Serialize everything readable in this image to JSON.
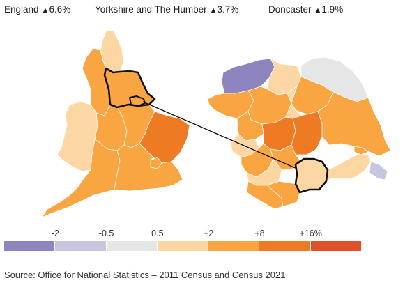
{
  "header": {
    "stats": [
      {
        "name": "England",
        "arrow": "▲",
        "change": "6.6%"
      },
      {
        "name": "Yorkshire and The Humber",
        "arrow": "▲",
        "change": "3.7%"
      },
      {
        "name": "Doncaster",
        "arrow": "▲",
        "change": "1.9%"
      }
    ]
  },
  "legend": {
    "ticks": [
      "-2",
      "-0.5",
      "0.5",
      "+2",
      "+8",
      "+16%"
    ],
    "colors": [
      "#8e84c0",
      "#c9c5e0",
      "#e6e6e6",
      "#fdd7a3",
      "#f9a541",
      "#ef7a24",
      "#e0502a"
    ]
  },
  "map_colors": {
    "outline": "#111111",
    "boundary": "#ffffff",
    "wales": "#fdd7a3"
  },
  "source": "Source: Office for National Statistics – 2011 Census and Census 2021"
}
